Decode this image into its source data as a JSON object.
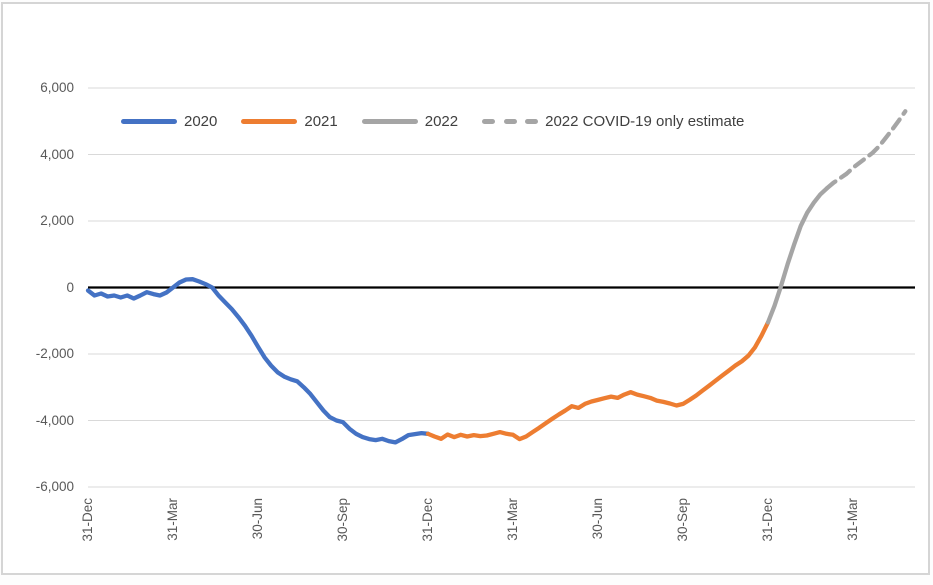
{
  "window": {
    "background_color": "#ffffff",
    "frame_border_color": "#d5d5d5"
  },
  "chart_data": {
    "type": "line",
    "title": "",
    "xlabel": "",
    "ylabel": "",
    "x_axis": {
      "unit": "weeks since 31-Dec-2019",
      "tick_week_positions": [
        0,
        13,
        26,
        39,
        52,
        65,
        78,
        91,
        104,
        117
      ],
      "tick_labels": [
        "31-Dec",
        "31-Mar",
        "30-Jun",
        "30-Sep",
        "31-Dec",
        "31-Mar",
        "30-Jun",
        "30-Sep",
        "31-Dec",
        "31-Mar"
      ],
      "label_rotation_deg": -90
    },
    "y_axis": {
      "min": -6000,
      "max": 6000,
      "tick_interval": 2000,
      "tick_values": [
        6000,
        4000,
        2000,
        0,
        -2000,
        -4000,
        -6000
      ],
      "tick_labels": [
        "6,000",
        "4,000",
        "2,000",
        "0",
        "-2,000",
        "-4,000",
        "-6,000"
      ],
      "gridlines": true,
      "gridline_color": "#d9d9d9",
      "zero_line_color": "#000000"
    },
    "legend": {
      "position": "top-left-inside",
      "text_color": "#404040",
      "items": [
        "2020",
        "2021",
        "2022",
        "2022 COVID-19 only estimate"
      ]
    },
    "series": [
      {
        "name": "2020",
        "color": "#4472C4",
        "style": "solid",
        "points": [
          [
            0,
            -90
          ],
          [
            1,
            -240
          ],
          [
            2,
            -180
          ],
          [
            3,
            -270
          ],
          [
            4,
            -240
          ],
          [
            5,
            -300
          ],
          [
            6,
            -240
          ],
          [
            7,
            -330
          ],
          [
            8,
            -240
          ],
          [
            9,
            -140
          ],
          [
            10,
            -200
          ],
          [
            11,
            -240
          ],
          [
            12,
            -150
          ],
          [
            13,
            0
          ],
          [
            14,
            150
          ],
          [
            15,
            240
          ],
          [
            16,
            250
          ],
          [
            17,
            180
          ],
          [
            18,
            100
          ],
          [
            19,
            0
          ],
          [
            20,
            -250
          ],
          [
            21,
            -450
          ],
          [
            22,
            -650
          ],
          [
            23,
            -890
          ],
          [
            24,
            -1150
          ],
          [
            25,
            -1450
          ],
          [
            26,
            -1780
          ],
          [
            27,
            -2100
          ],
          [
            28,
            -2350
          ],
          [
            29,
            -2550
          ],
          [
            30,
            -2680
          ],
          [
            31,
            -2760
          ],
          [
            32,
            -2820
          ],
          [
            33,
            -3000
          ],
          [
            34,
            -3200
          ],
          [
            35,
            -3450
          ],
          [
            36,
            -3700
          ],
          [
            37,
            -3900
          ],
          [
            38,
            -4000
          ],
          [
            39,
            -4050
          ],
          [
            40,
            -4250
          ],
          [
            41,
            -4400
          ],
          [
            42,
            -4500
          ],
          [
            43,
            -4560
          ],
          [
            44,
            -4590
          ],
          [
            45,
            -4550
          ],
          [
            46,
            -4620
          ],
          [
            47,
            -4660
          ],
          [
            48,
            -4560
          ],
          [
            49,
            -4440
          ],
          [
            50,
            -4410
          ],
          [
            51,
            -4380
          ],
          [
            52,
            -4400
          ]
        ]
      },
      {
        "name": "2021",
        "color": "#ED7D31",
        "style": "solid",
        "points": [
          [
            52,
            -4400
          ],
          [
            53,
            -4480
          ],
          [
            54,
            -4550
          ],
          [
            55,
            -4420
          ],
          [
            56,
            -4500
          ],
          [
            57,
            -4430
          ],
          [
            58,
            -4480
          ],
          [
            59,
            -4440
          ],
          [
            60,
            -4470
          ],
          [
            61,
            -4450
          ],
          [
            62,
            -4400
          ],
          [
            63,
            -4350
          ],
          [
            64,
            -4400
          ],
          [
            65,
            -4430
          ],
          [
            66,
            -4560
          ],
          [
            67,
            -4480
          ],
          [
            68,
            -4350
          ],
          [
            69,
            -4220
          ],
          [
            70,
            -4080
          ],
          [
            71,
            -3950
          ],
          [
            72,
            -3820
          ],
          [
            73,
            -3700
          ],
          [
            74,
            -3570
          ],
          [
            75,
            -3620
          ],
          [
            76,
            -3500
          ],
          [
            77,
            -3430
          ],
          [
            78,
            -3380
          ],
          [
            79,
            -3330
          ],
          [
            80,
            -3280
          ],
          [
            81,
            -3320
          ],
          [
            82,
            -3220
          ],
          [
            83,
            -3150
          ],
          [
            84,
            -3220
          ],
          [
            85,
            -3270
          ],
          [
            86,
            -3320
          ],
          [
            87,
            -3400
          ],
          [
            88,
            -3440
          ],
          [
            89,
            -3490
          ],
          [
            90,
            -3550
          ],
          [
            91,
            -3500
          ],
          [
            92,
            -3380
          ],
          [
            93,
            -3250
          ],
          [
            94,
            -3100
          ],
          [
            95,
            -2950
          ],
          [
            96,
            -2800
          ],
          [
            97,
            -2650
          ],
          [
            98,
            -2500
          ],
          [
            99,
            -2350
          ],
          [
            100,
            -2220
          ],
          [
            101,
            -2050
          ],
          [
            102,
            -1800
          ],
          [
            103,
            -1450
          ],
          [
            104,
            -1050
          ]
        ]
      },
      {
        "name": "2022",
        "color": "#A5A5A5",
        "style": "solid",
        "points": [
          [
            104,
            -1050
          ],
          [
            105,
            -550
          ],
          [
            106,
            50
          ],
          [
            107,
            700
          ],
          [
            108,
            1300
          ],
          [
            109,
            1850
          ],
          [
            110,
            2250
          ],
          [
            111,
            2550
          ],
          [
            112,
            2800
          ],
          [
            113,
            2980
          ]
        ]
      },
      {
        "name": "2022 COVID-19 only estimate",
        "color": "#A5A5A5",
        "style": "dashed",
        "points": [
          [
            113,
            2980
          ],
          [
            114,
            3150
          ],
          [
            115,
            3280
          ],
          [
            116,
            3420
          ],
          [
            117,
            3600
          ],
          [
            118,
            3750
          ],
          [
            119,
            3900
          ],
          [
            120,
            4050
          ],
          [
            121,
            4250
          ],
          [
            122,
            4500
          ],
          [
            123,
            4750
          ],
          [
            124,
            5020
          ],
          [
            125,
            5300
          ]
        ]
      }
    ]
  }
}
